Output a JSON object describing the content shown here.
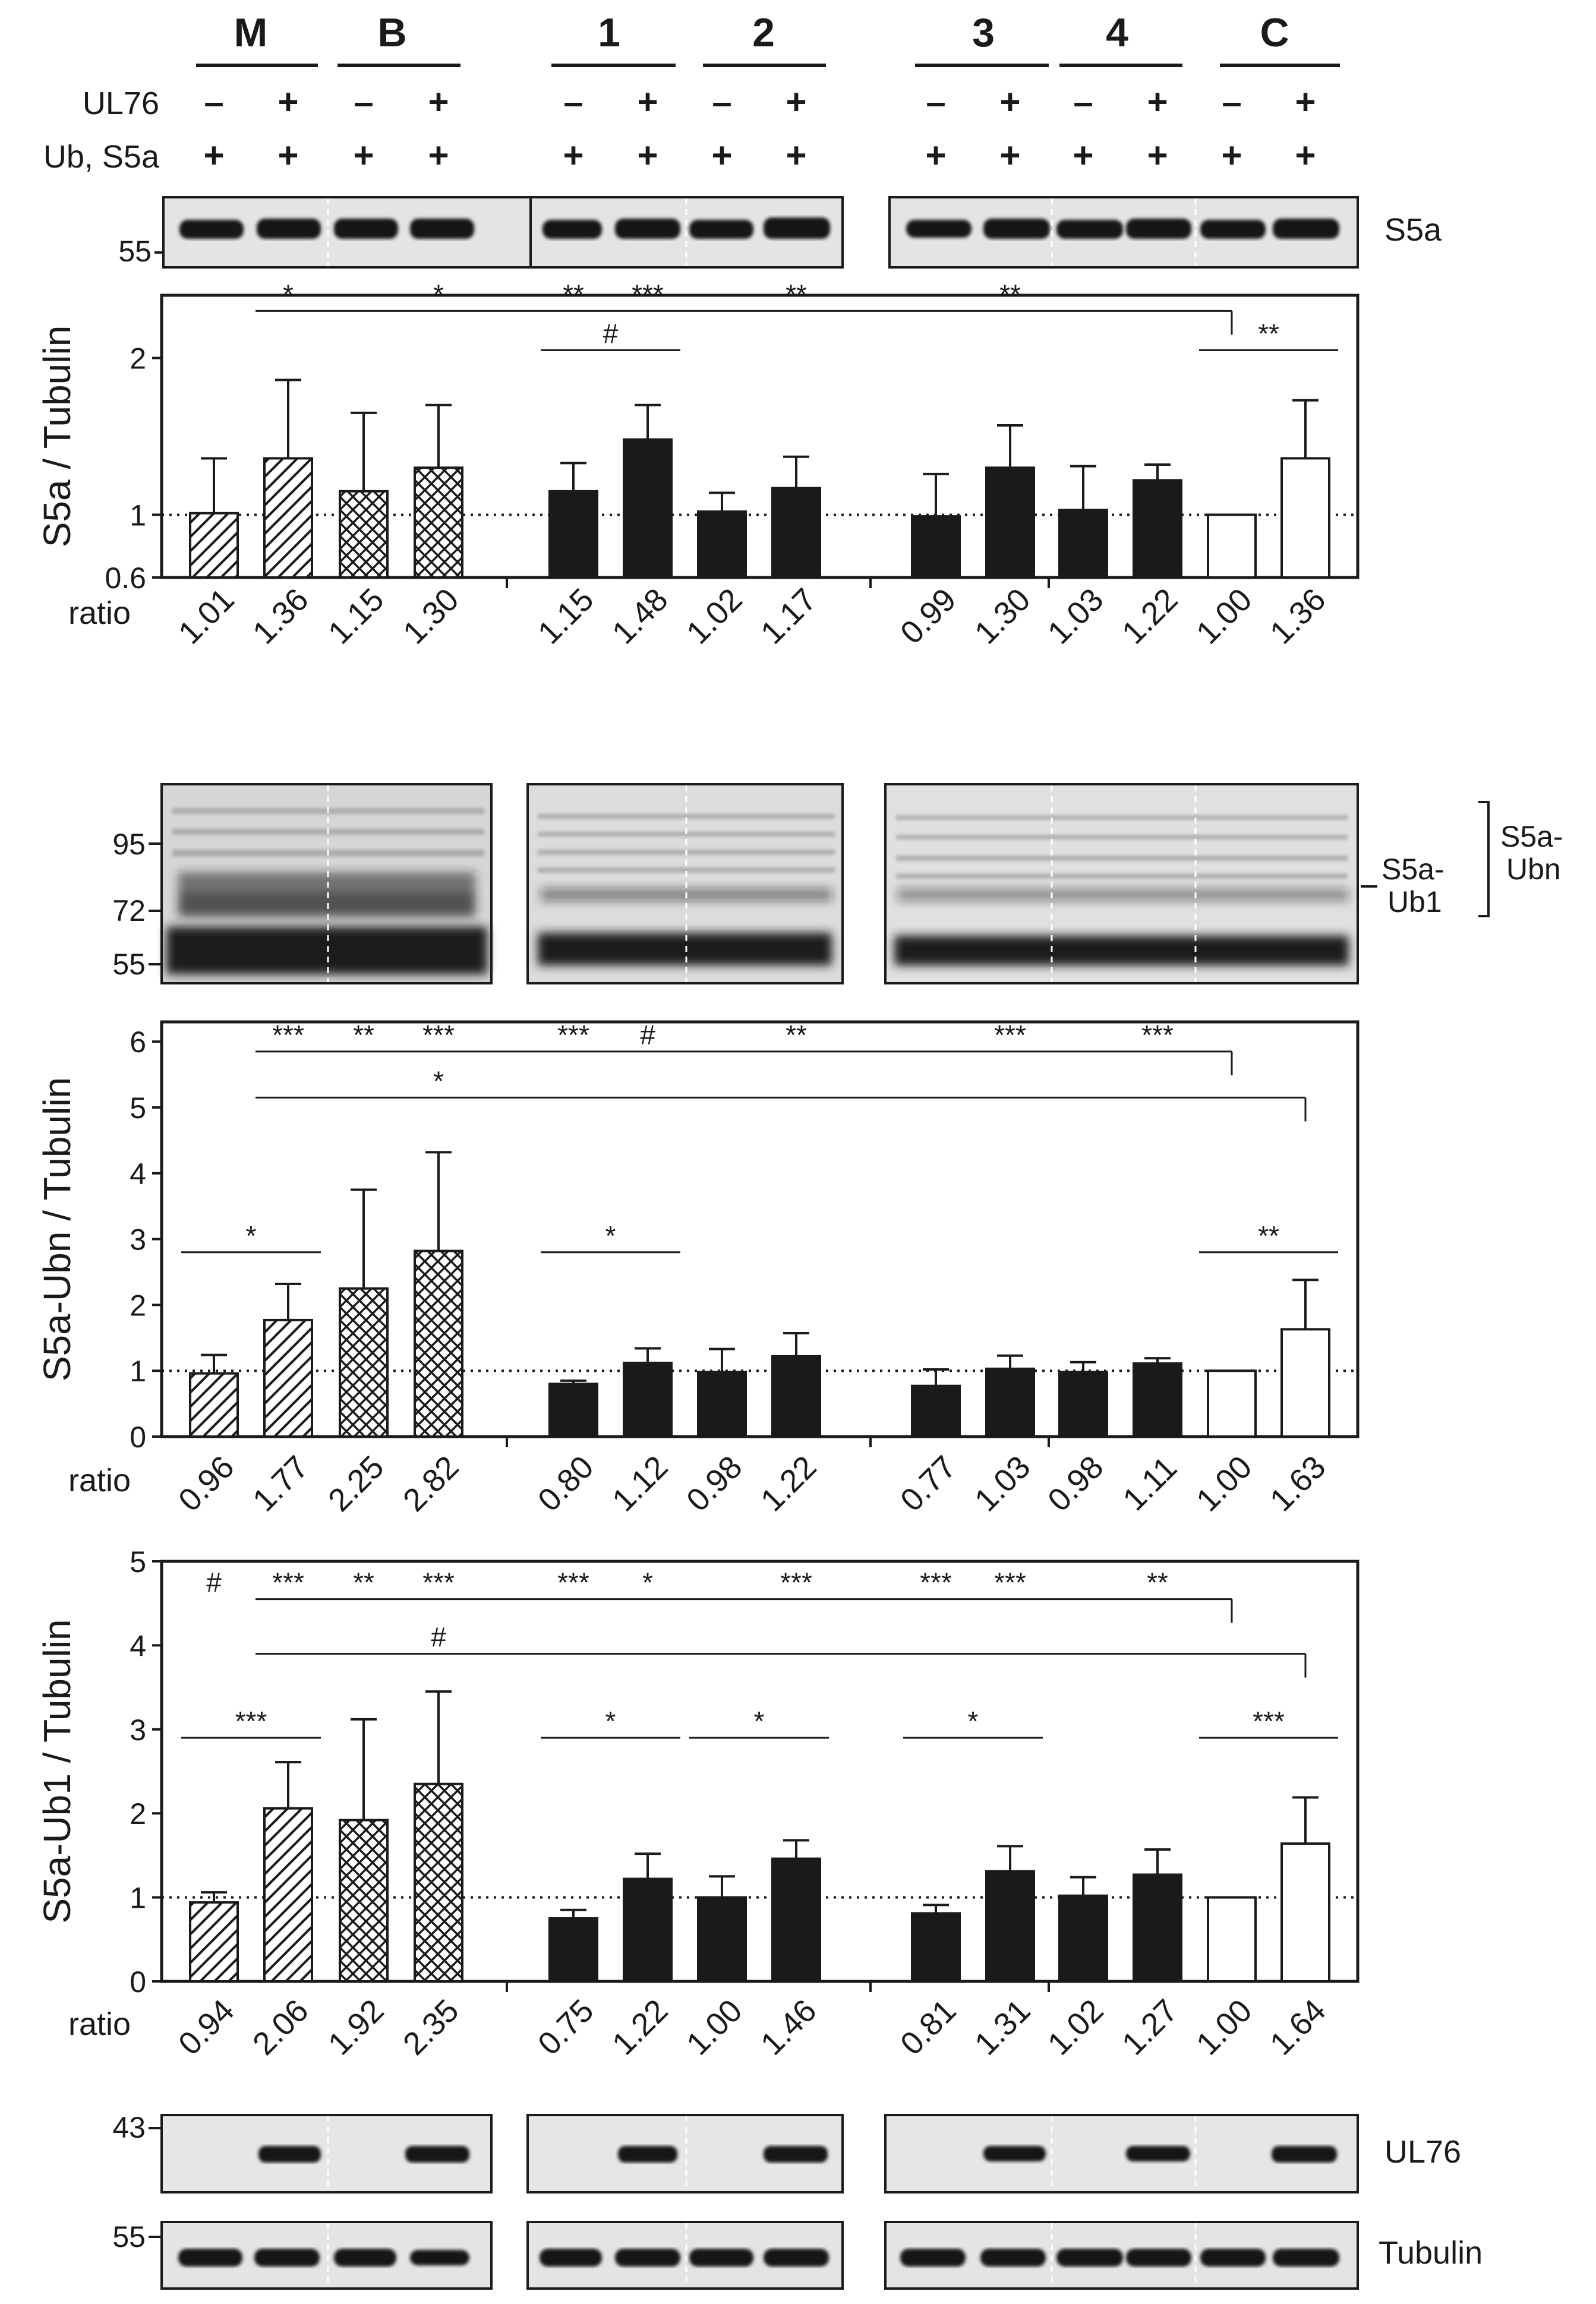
{
  "header": {
    "groups": [
      "M",
      "B",
      "1",
      "2",
      "3",
      "4",
      "C"
    ],
    "row_labels": {
      "ul76": "UL76",
      "ubs5a": "Ub, S5a"
    },
    "ul76_signs": [
      "–",
      "+",
      "–",
      "+",
      "–",
      "+",
      "–",
      "+",
      "–",
      "+",
      "–",
      "+",
      "–",
      "+"
    ],
    "ubs5a_signs": [
      "+",
      "+",
      "+",
      "+",
      "+",
      "+",
      "+",
      "+",
      "+",
      "+",
      "+",
      "+",
      "+",
      "+"
    ]
  },
  "blots": {
    "s5a": {
      "mw": [
        "55"
      ],
      "label": "S5a"
    },
    "ubn": {
      "mw": [
        "95",
        "72",
        "55"
      ],
      "labels": {
        "ub1": "S5a-\nUb1",
        "ubn": "S5a-\nUbn"
      }
    },
    "ul76": {
      "mw": [
        "43"
      ],
      "label": "UL76"
    },
    "tubulin": {
      "mw": [
        "55"
      ],
      "label": "Tubulin"
    }
  },
  "ratio_label": "ratio",
  "colors": {
    "ink": "#1a1a1a",
    "bar_fill": "#1a1a1a",
    "blot_bg": "#e4e4e4",
    "band": "#151515"
  },
  "chart_data": [
    {
      "type": "bar",
      "ylabel": "S5a / Tubulin",
      "ylim": [
        0.6,
        2.4
      ],
      "ticks": [
        "0.6",
        "1",
        "2"
      ],
      "ratios": [
        "1.01",
        "1.36",
        "1.15",
        "1.30",
        "1.15",
        "1.48",
        "1.02",
        "1.17",
        "0.99",
        "1.30",
        "1.03",
        "1.22",
        "1.00",
        "1.36"
      ],
      "values": [
        1.01,
        1.36,
        1.15,
        1.3,
        1.15,
        1.48,
        1.02,
        1.17,
        0.99,
        1.3,
        1.03,
        1.22,
        1.0,
        1.36
      ],
      "errors": [
        0.35,
        0.5,
        0.5,
        0.4,
        0.18,
        0.22,
        0.12,
        0.2,
        0.27,
        0.27,
        0.28,
        0.1,
        0,
        0.37
      ],
      "significance": [
        {
          "kind": "lane",
          "marks": [
            {
              "lane": 1,
              "label": "*"
            },
            {
              "lane": 3,
              "label": "*"
            },
            {
              "lane": 4,
              "label": "**"
            },
            {
              "lane": 5,
              "label": "***"
            },
            {
              "lane": 7,
              "label": "**"
            },
            {
              "lane": 9,
              "label": "**"
            }
          ],
          "ref_lane": 12,
          "level": 2.3
        },
        {
          "kind": "pair",
          "lanes": [
            4,
            5
          ],
          "label": "#",
          "level": 2.05
        },
        {
          "kind": "pair",
          "lanes": [
            12,
            13
          ],
          "label": "**",
          "level": 2.05
        }
      ]
    },
    {
      "type": "bar",
      "ylabel": "S5a-Ubn / Tubulin",
      "ylim": [
        0,
        6.3
      ],
      "ticks": [
        "0",
        "1",
        "2",
        "3",
        "4",
        "5",
        "6"
      ],
      "ratios": [
        "0.96",
        "1.77",
        "2.25",
        "2.82",
        "0.80",
        "1.12",
        "0.98",
        "1.22",
        "0.77",
        "1.03",
        "0.98",
        "1.11",
        "1.00",
        "1.63"
      ],
      "values": [
        0.96,
        1.77,
        2.25,
        2.82,
        0.8,
        1.12,
        0.98,
        1.22,
        0.77,
        1.03,
        0.98,
        1.11,
        1.0,
        1.63
      ],
      "errors": [
        0.28,
        0.55,
        1.5,
        1.5,
        0.05,
        0.22,
        0.35,
        0.35,
        0.25,
        0.2,
        0.15,
        0.08,
        0,
        0.75
      ],
      "significance": [
        {
          "kind": "lane",
          "marks": [
            {
              "lane": 1,
              "label": "***"
            },
            {
              "lane": 2,
              "label": "**"
            },
            {
              "lane": 3,
              "label": "***"
            },
            {
              "lane": 4,
              "label": "***"
            },
            {
              "lane": 5,
              "label": "#"
            },
            {
              "lane": 7,
              "label": "**"
            },
            {
              "lane": 9,
              "label": "***"
            },
            {
              "lane": 11,
              "label": "***"
            }
          ],
          "ref_lane": 12,
          "level": 5.85
        },
        {
          "kind": "lane",
          "marks": [
            {
              "lane": 3,
              "label": "*"
            }
          ],
          "ref_lane": 13,
          "level": 5.15
        },
        {
          "kind": "pair",
          "lanes": [
            0,
            1
          ],
          "label": "*",
          "level": 2.8
        },
        {
          "kind": "pair",
          "lanes": [
            4,
            5
          ],
          "label": "*",
          "level": 2.8
        },
        {
          "kind": "pair",
          "lanes": [
            12,
            13
          ],
          "label": "**",
          "level": 2.8
        }
      ]
    },
    {
      "type": "bar",
      "ylabel": "S5a-Ub1 / Tubulin",
      "ylim": [
        0,
        5
      ],
      "ticks": [
        "0",
        "1",
        "2",
        "3",
        "4",
        "5"
      ],
      "ratios": [
        "0.94",
        "2.06",
        "1.92",
        "2.35",
        "0.75",
        "1.22",
        "1.00",
        "1.46",
        "0.81",
        "1.31",
        "1.02",
        "1.27",
        "1.00",
        "1.64"
      ],
      "values": [
        0.94,
        2.06,
        1.92,
        2.35,
        0.75,
        1.22,
        1.0,
        1.46,
        0.81,
        1.31,
        1.02,
        1.27,
        1.0,
        1.64
      ],
      "errors": [
        0.12,
        0.55,
        1.2,
        1.1,
        0.1,
        0.3,
        0.25,
        0.22,
        0.1,
        0.3,
        0.22,
        0.3,
        0,
        0.55
      ],
      "significance": [
        {
          "kind": "lane",
          "marks": [
            {
              "lane": 0,
              "label": "#"
            },
            {
              "lane": 1,
              "label": "***"
            },
            {
              "lane": 2,
              "label": "**"
            },
            {
              "lane": 3,
              "label": "***"
            },
            {
              "lane": 4,
              "label": "***"
            },
            {
              "lane": 5,
              "label": "*"
            },
            {
              "lane": 7,
              "label": "***"
            },
            {
              "lane": 8,
              "label": "***"
            },
            {
              "lane": 9,
              "label": "***"
            },
            {
              "lane": 11,
              "label": "**"
            }
          ],
          "ref_lane": 12,
          "level": 4.55
        },
        {
          "kind": "lane",
          "marks": [
            {
              "lane": 3,
              "label": "#"
            }
          ],
          "ref_lane": 13,
          "level": 3.9
        },
        {
          "kind": "pair",
          "lanes": [
            0,
            1
          ],
          "label": "***",
          "level": 2.9
        },
        {
          "kind": "pair",
          "lanes": [
            4,
            5
          ],
          "label": "*",
          "level": 2.9
        },
        {
          "kind": "pair",
          "lanes": [
            6,
            7
          ],
          "label": "*",
          "level": 2.9
        },
        {
          "kind": "pair",
          "lanes": [
            8,
            9
          ],
          "label": "*",
          "level": 2.9
        },
        {
          "kind": "pair",
          "lanes": [
            12,
            13
          ],
          "label": "***",
          "level": 2.9
        }
      ]
    }
  ]
}
